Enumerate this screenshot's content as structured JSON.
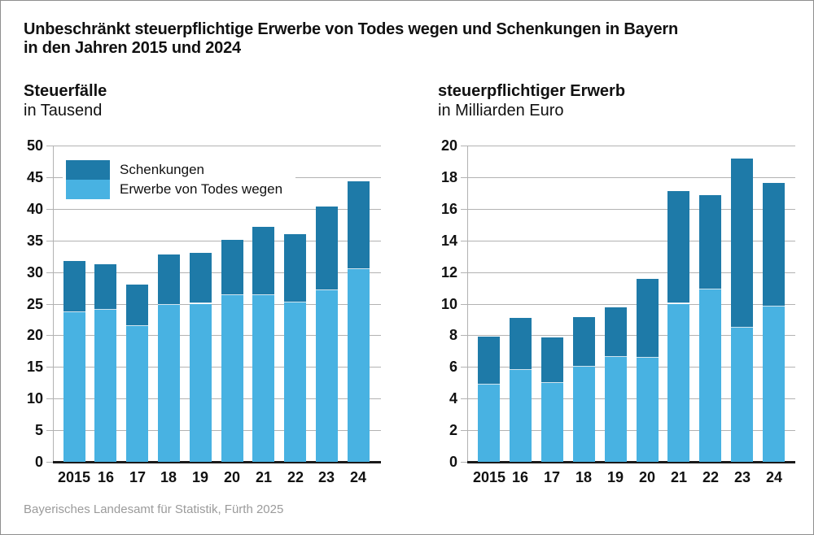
{
  "header": {
    "title_line1": "Unbeschränkt steuerpflichtige Erwerbe von Todes wegen und Schenkungen in Bayern",
    "title_line2": "in den Jahren 2015 und 2024"
  },
  "legend": {
    "items": [
      {
        "label": "Schenkungen",
        "color": "#1e7aa8"
      },
      {
        "label": "Erwerbe von Todes wegen",
        "color": "#48b2e2"
      }
    ]
  },
  "footer": {
    "source": "Bayerisches Landesamt für Statistik, Fürth 2025"
  },
  "colors": {
    "dark_blue": "#1e7aa8",
    "light_blue": "#48b2e2",
    "gridline": "#b2b2b2",
    "baseline": "#1a1a1a",
    "footer_text": "#9b9b9b",
    "page_border": "#8f8f8f"
  },
  "chart_data": [
    {
      "type": "bar",
      "stacked": true,
      "title": "Steuerfälle",
      "subtitle": "in Tausend",
      "categories": [
        "2015",
        "16",
        "17",
        "18",
        "19",
        "20",
        "21",
        "22",
        "23",
        "24"
      ],
      "series": [
        {
          "name": "Erwerbe von Todes wegen",
          "color": "#48b2e2",
          "values": [
            23.6,
            24.0,
            21.5,
            24.8,
            25.0,
            26.4,
            26.3,
            25.2,
            27.1,
            30.4
          ]
        },
        {
          "name": "Schenkungen",
          "color": "#1e7aa8",
          "values": [
            8.1,
            7.2,
            6.5,
            8.0,
            8.0,
            8.7,
            10.9,
            10.8,
            13.2,
            13.9
          ]
        }
      ],
      "totals": [
        31.7,
        31.2,
        28.0,
        32.8,
        33.0,
        35.1,
        37.2,
        36.0,
        40.3,
        44.3
      ],
      "ylim": [
        0,
        50
      ],
      "ystep": 5,
      "grid": true,
      "legend_position": "inside-top-left"
    },
    {
      "type": "bar",
      "stacked": true,
      "title": "steuerpflichtiger Erwerb",
      "subtitle": "in Milliarden Euro",
      "categories": [
        "2015",
        "16",
        "17",
        "18",
        "19",
        "20",
        "21",
        "22",
        "23",
        "24"
      ],
      "series": [
        {
          "name": "Erwerbe von Todes wegen",
          "color": "#48b2e2",
          "values": [
            4.9,
            5.8,
            5.0,
            6.0,
            6.65,
            6.6,
            10.0,
            10.9,
            8.5,
            9.8
          ]
        },
        {
          "name": "Schenkungen",
          "color": "#1e7aa8",
          "values": [
            3.0,
            3.3,
            2.85,
            3.15,
            3.1,
            4.95,
            7.1,
            5.95,
            10.7,
            7.85
          ]
        }
      ],
      "totals": [
        7.9,
        9.1,
        7.85,
        9.15,
        9.75,
        11.55,
        17.1,
        16.85,
        19.2,
        17.65
      ],
      "ylim": [
        0,
        20
      ],
      "ystep": 2,
      "grid": true,
      "legend_position": "none"
    }
  ]
}
